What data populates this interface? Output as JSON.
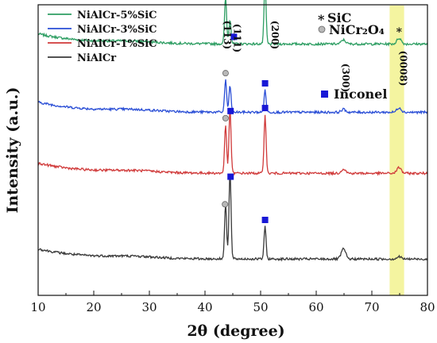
{
  "chart_data": {
    "type": "line",
    "title": "",
    "xlabel": "2θ (degree)",
    "ylabel": "Intensity (a.u.)",
    "xlim": [
      10,
      80
    ],
    "x_ticks": [
      10,
      20,
      30,
      40,
      50,
      60,
      70,
      80
    ],
    "y_ticks_shown": false,
    "grid": false,
    "legend_position": "top-left",
    "highlight_band": {
      "x_range": [
        73.2,
        75.8
      ],
      "color": "#f4f4a0"
    },
    "series": [
      {
        "name": "NiAlCr-5%SiC",
        "color": "#2e9e63",
        "baseline": 0.865,
        "peaks": [
          [
            43.7,
            0.16
          ],
          [
            44.5,
            0.085
          ],
          [
            50.8,
            0.205
          ],
          [
            64.9,
            0.014
          ],
          [
            74.9,
            0.02
          ]
        ]
      },
      {
        "name": "NiAlCr-3%SiC",
        "color": "#2a4ed6",
        "baseline": 0.63,
        "peaks": [
          [
            43.7,
            0.11
          ],
          [
            44.5,
            0.09
          ],
          [
            50.8,
            0.075
          ],
          [
            64.9,
            0.01
          ],
          [
            74.9,
            0.016
          ]
        ]
      },
      {
        "name": "NiAlCr-1%SiC",
        "color": "#d03a3a",
        "baseline": 0.42,
        "peaks": [
          [
            43.7,
            0.165
          ],
          [
            44.5,
            0.22
          ],
          [
            50.8,
            0.2
          ],
          [
            64.9,
            0.015
          ],
          [
            74.9,
            0.02
          ]
        ]
      },
      {
        "name": "NiAlCr",
        "color": "#3a3a3a",
        "baseline": 0.125,
        "peaks": [
          [
            43.7,
            0.19
          ],
          [
            44.5,
            0.3
          ],
          [
            50.8,
            0.11
          ],
          [
            64.9,
            0.035
          ],
          [
            74.9,
            0.008
          ]
        ]
      }
    ],
    "legend": [
      {
        "label": "NiAlCr-5%SiC",
        "color": "#2e9e63"
      },
      {
        "label": "NiAlCr-3%SiC",
        "color": "#2a4ed6"
      },
      {
        "label": "NiAlCr-1%SiC",
        "color": "#d03a3a"
      },
      {
        "label": "NiAlCr",
        "color": "#3a3a3a"
      }
    ],
    "phase_legend": [
      {
        "marker": "asterisk",
        "label": "SiC",
        "color": "#c8292b"
      },
      {
        "marker": "circle",
        "label": "NiCr₂O₄",
        "color": "#888888"
      },
      {
        "marker": "square",
        "label": "Inconel",
        "color": "#1818d6"
      }
    ],
    "peak_labels": [
      {
        "text": "(113)",
        "x": 43.4
      },
      {
        "text": "(111)",
        "x": 45.2
      },
      {
        "text": "(200)",
        "x": 52.0
      },
      {
        "text": "(300)",
        "x": 64.7
      },
      {
        "text": "(0008)",
        "x": 75.1
      }
    ],
    "markers": [
      {
        "type": "square",
        "x": 50.8,
        "series": 0
      },
      {
        "type": "square",
        "x": 45.2,
        "series": 0
      },
      {
        "type": "asterisk",
        "x": 74.9,
        "series": 0
      },
      {
        "type": "circle",
        "x": 43.7,
        "series": 1
      },
      {
        "type": "square",
        "x": 50.8,
        "series": 1
      },
      {
        "type": "circle",
        "x": 43.7,
        "series": 2
      },
      {
        "type": "square",
        "x": 44.6,
        "series": 2
      },
      {
        "type": "square",
        "x": 50.8,
        "series": 2
      },
      {
        "type": "circle",
        "x": 43.6,
        "series": 3
      },
      {
        "type": "square",
        "x": 44.6,
        "series": 3
      },
      {
        "type": "square",
        "x": 50.8,
        "series": 3
      }
    ]
  }
}
